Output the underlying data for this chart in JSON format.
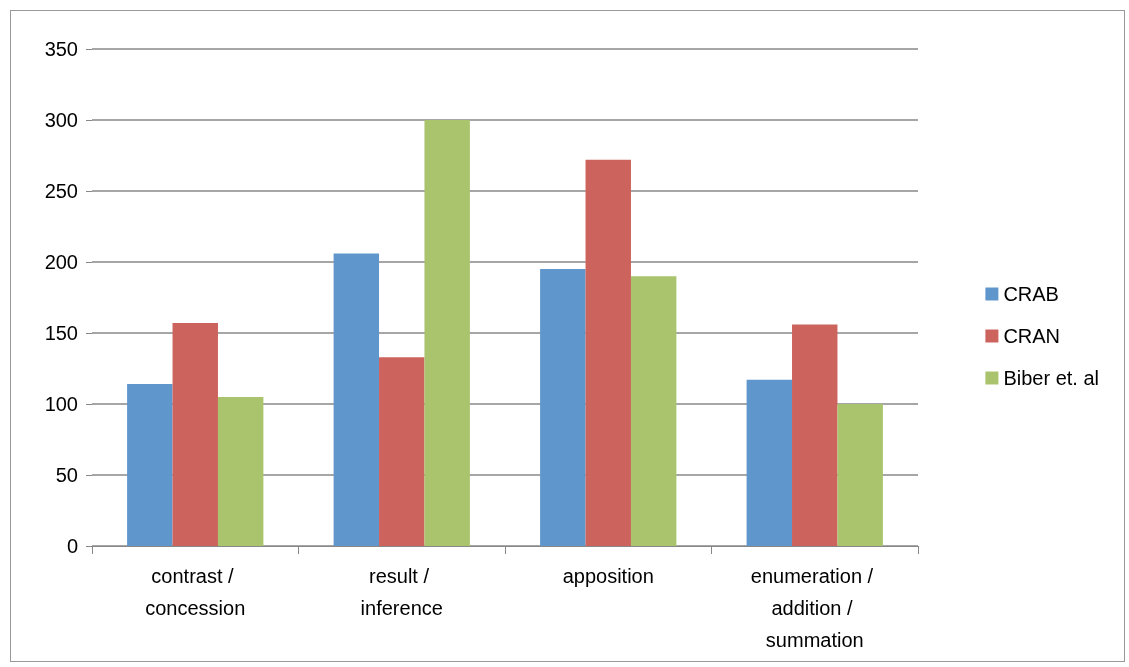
{
  "chart_data": {
    "type": "bar",
    "categories": [
      "contrast / concession",
      "result / inference",
      "apposition",
      "enumeration / addition / summation"
    ],
    "series": [
      {
        "name": "CRAB",
        "color": "#5f96cc",
        "values": [
          114,
          206,
          195,
          117
        ]
      },
      {
        "name": "CRAN",
        "color": "#cd635d",
        "values": [
          157,
          133,
          272,
          156
        ]
      },
      {
        "name": "Biber et. al",
        "color": "#a9c46c",
        "values": [
          105,
          300,
          190,
          100
        ]
      }
    ],
    "ylim": [
      0,
      350
    ],
    "yticks": [
      0,
      50,
      100,
      150,
      200,
      250,
      300,
      350
    ],
    "grid": "y",
    "legend": "right"
  }
}
